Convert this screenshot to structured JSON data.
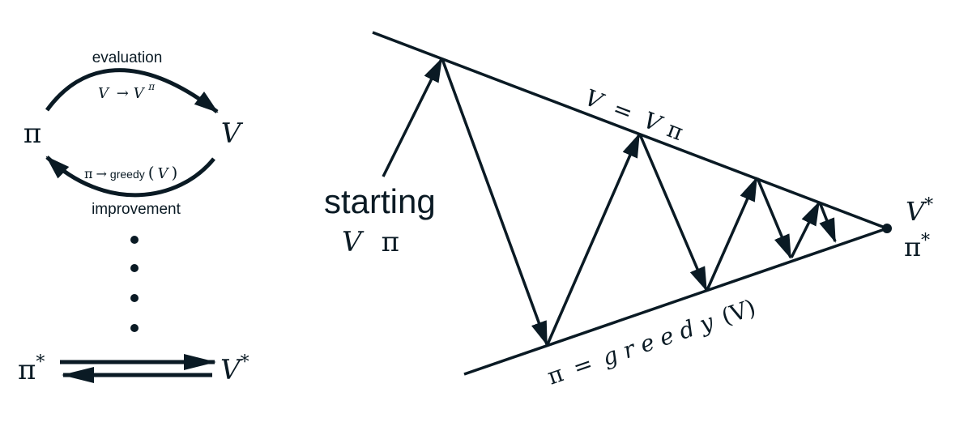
{
  "colors": {
    "ink": "#0a1a24",
    "background": "#ffffff"
  },
  "left_cycle": {
    "evaluation_label": "evaluation",
    "evaluation_formula": {
      "lhs": "V",
      "arrow": "→",
      "base": "V",
      "sup": "π"
    },
    "pi_symbol": "π",
    "v_symbol": "V",
    "improvement_formula": {
      "lhs": "π",
      "arrow": "→",
      "func": "greedy",
      "open": "(",
      "arg": "V",
      "close": ")"
    },
    "improvement_label": "improvement",
    "pi_star": {
      "base": "π",
      "sup": "*"
    },
    "v_star": {
      "base": "V",
      "sup": "*"
    }
  },
  "convergence": {
    "start_label_line1": "starting",
    "start_v": "V",
    "start_pi": "π",
    "upper_line_label": {
      "lhs": "V",
      "eq": "=",
      "rhs_v": "V",
      "rhs_pi": "π"
    },
    "lower_line_label": {
      "lhs": "π",
      "eq": "=",
      "func": "g r e e d y",
      "arg": "(V)"
    },
    "end_v_star": {
      "base": "V",
      "sup": "*"
    },
    "end_pi_star": {
      "base": "π",
      "sup": "*"
    }
  }
}
